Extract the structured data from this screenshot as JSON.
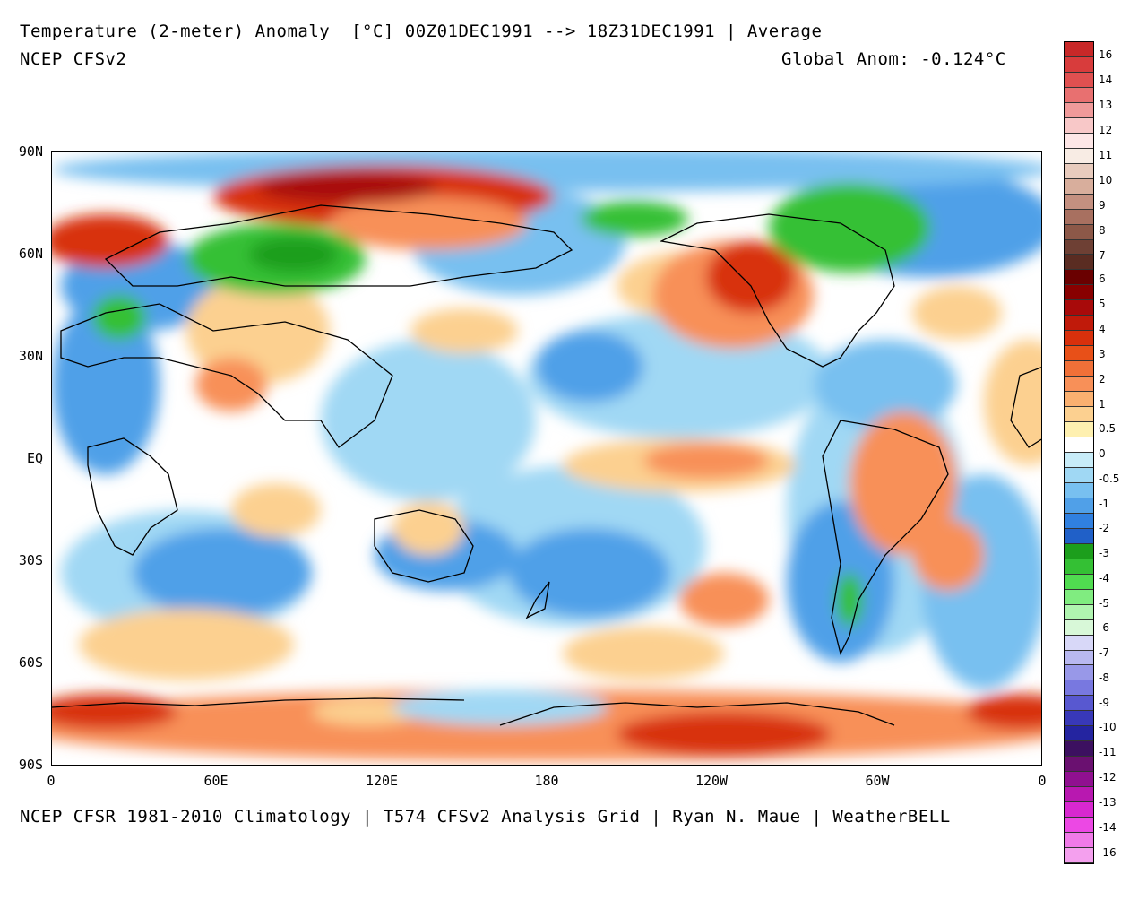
{
  "header": {
    "title": "Temperature (2-meter) Anomaly  [°C] 00Z01DEC1991 --> 18Z31DEC1991 | Average",
    "model": "NCEP CFSv2",
    "global_anom": "Global Anom: -0.124°C"
  },
  "footer": "NCEP CFSR 1981-2010 Climatology | T574 CFSv2 Analysis Grid | Ryan N. Maue | WeatherBELL",
  "axes": {
    "lat_labels": [
      "90N",
      "60N",
      "30N",
      "EQ",
      "30S",
      "60S",
      "90S"
    ],
    "lon_labels": [
      "0",
      "60E",
      "120E",
      "180",
      "120W",
      "60W",
      "0"
    ]
  },
  "colorbar": {
    "labels": [
      "16",
      "14",
      "13",
      "12",
      "11",
      "10",
      "9",
      "8",
      "7",
      "6",
      "5",
      "4",
      "3",
      "2",
      "1",
      "0.5",
      "0",
      "-0.5",
      "-1",
      "-2",
      "-3",
      "-4",
      "-5",
      "-6",
      "-7",
      "-8",
      "-9",
      "-10",
      "-11",
      "-12",
      "-13",
      "-14",
      "-16"
    ],
    "colors": [
      "#c82828",
      "#d83c3c",
      "#e05050",
      "#e87070",
      "#f09a9a",
      "#f8c8c8",
      "#fde6e6",
      "#f8ece4",
      "#e8cbbd",
      "#d8ae9c",
      "#c49080",
      "#a87060",
      "#8c5848",
      "#6e4034",
      "#5a2c22",
      "#6a0000",
      "#880000",
      "#a80a0a",
      "#c01a0a",
      "#d8300c",
      "#e85018",
      "#f07038",
      "#f89058",
      "#fab070",
      "#fcd090",
      "#fef0b0",
      "#ffffff",
      "#c8ecf8",
      "#a0d8f4",
      "#78c0f0",
      "#50a0e8",
      "#3080e0",
      "#2060c8",
      "#1c9e1c",
      "#34c034",
      "#50dc50",
      "#80ec80",
      "#b0f4b0",
      "#d8f8d8",
      "#d8d8f8",
      "#b8b8f0",
      "#9898e8",
      "#7878e0",
      "#5858d0",
      "#3838b8",
      "#2424a0",
      "#3c1060",
      "#6a1070",
      "#901090",
      "#b818b0",
      "#d828d0",
      "#ec48e4",
      "#f07ae8",
      "#f4a0ee"
    ]
  },
  "map_palette": {
    "ocean_neutral": "#ffffff",
    "warm_light": "#fcd090",
    "warm": "#f89058",
    "hot": "#d8300c",
    "very_hot": "#a80a0a",
    "cool_light": "#a0d8f4",
    "cool": "#50a0e8",
    "cold": "#2060c8",
    "very_cold": "#34c034"
  }
}
